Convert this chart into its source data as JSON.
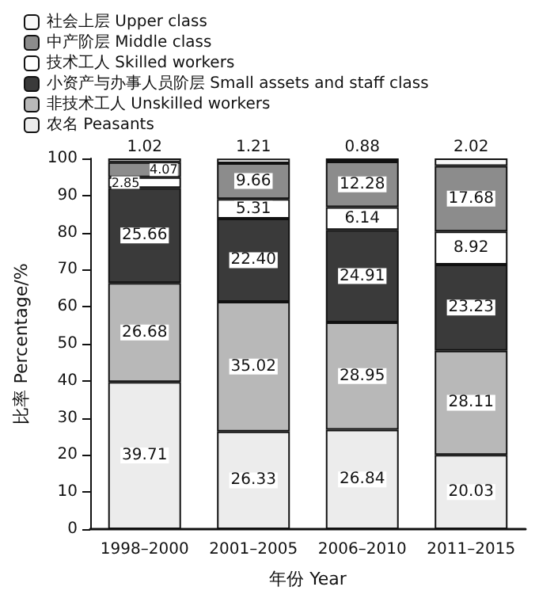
{
  "chart_data": {
    "type": "bar",
    "stacked": true,
    "xlabel": "年份 Year",
    "ylabel": "比率 Percentage/%",
    "categories": [
      "1998–2000",
      "2001–2005",
      "2006–2010",
      "2011–2015"
    ],
    "series": [
      {
        "name": "农名 Peasants",
        "color": "#ececec",
        "values": [
          39.71,
          26.33,
          26.84,
          20.03
        ],
        "value_labels": [
          "39.71",
          "26.33",
          "26.84",
          "20.03"
        ]
      },
      {
        "name": "非技术工人 Unskilled workers",
        "color": "#b8b8b8",
        "values": [
          26.68,
          35.02,
          28.95,
          28.11
        ],
        "value_labels": [
          "26.68",
          "35.02",
          "28.95",
          "28.11"
        ]
      },
      {
        "name": "小资产与办事人员阶层 Small assets and staff class",
        "color": "#3a3a3a",
        "values": [
          25.66,
          22.4,
          24.91,
          23.23
        ],
        "value_labels": [
          "25.66",
          "22.40",
          "24.91",
          "23.23"
        ]
      },
      {
        "name": "技术工人 Skilled workers",
        "color": "#ffffff",
        "values": [
          2.85,
          5.31,
          6.14,
          8.92
        ],
        "value_labels": [
          "2.85",
          "5.31",
          "6.14",
          "8.92"
        ]
      },
      {
        "name": "中产阶层 Middle class",
        "color": "#8c8c8c",
        "values": [
          4.07,
          9.66,
          12.28,
          17.68
        ],
        "value_labels": [
          "4.07",
          "9.66",
          "12.28",
          "17.68"
        ]
      },
      {
        "name": "社会上层 Upper class",
        "color": "#f8f8f8",
        "values": [
          1.02,
          1.21,
          0.88,
          2.02
        ],
        "value_labels": [
          "1.02",
          "1.21",
          "0.88",
          "2.02"
        ]
      }
    ],
    "ylim": [
      0,
      100
    ],
    "yticks": [
      0,
      10,
      20,
      30,
      40,
      50,
      60,
      70,
      80,
      90,
      100
    ],
    "legend": "top left",
    "grid": false
  }
}
